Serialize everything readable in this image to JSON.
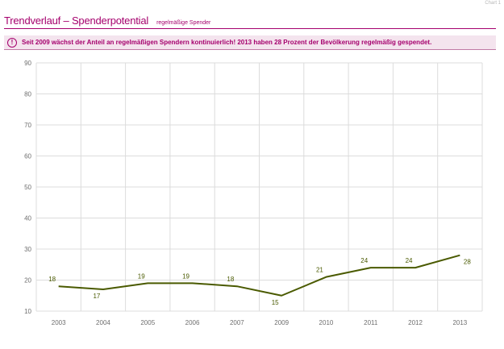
{
  "corner_label": "Chart 1",
  "header": {
    "title": "Trendverlauf – Spenderpotential",
    "subtitle": "regelmäßige Spender"
  },
  "info": {
    "icon": "info-icon",
    "icon_glyph": "!",
    "text": "Seit 2009 wächst der Anteil an regelmäßigen Spendern kontinuierlich! 2013 haben 28 Prozent der Bevölkerung regelmäßig gespendet."
  },
  "chart_data": {
    "type": "line",
    "categories": [
      "2003",
      "2004",
      "2005",
      "2006",
      "2007",
      "2009",
      "2010",
      "2011",
      "2012",
      "2013"
    ],
    "series": [
      {
        "values": [
          18,
          17,
          19,
          19,
          18,
          15,
          21,
          24,
          24,
          28
        ],
        "color": "#4a5a00"
      }
    ],
    "ylim": [
      10,
      90
    ],
    "yticks": [
      10,
      20,
      30,
      40,
      50,
      60,
      70,
      80,
      90
    ],
    "grid": true,
    "legend": "none",
    "data_labels": true
  }
}
